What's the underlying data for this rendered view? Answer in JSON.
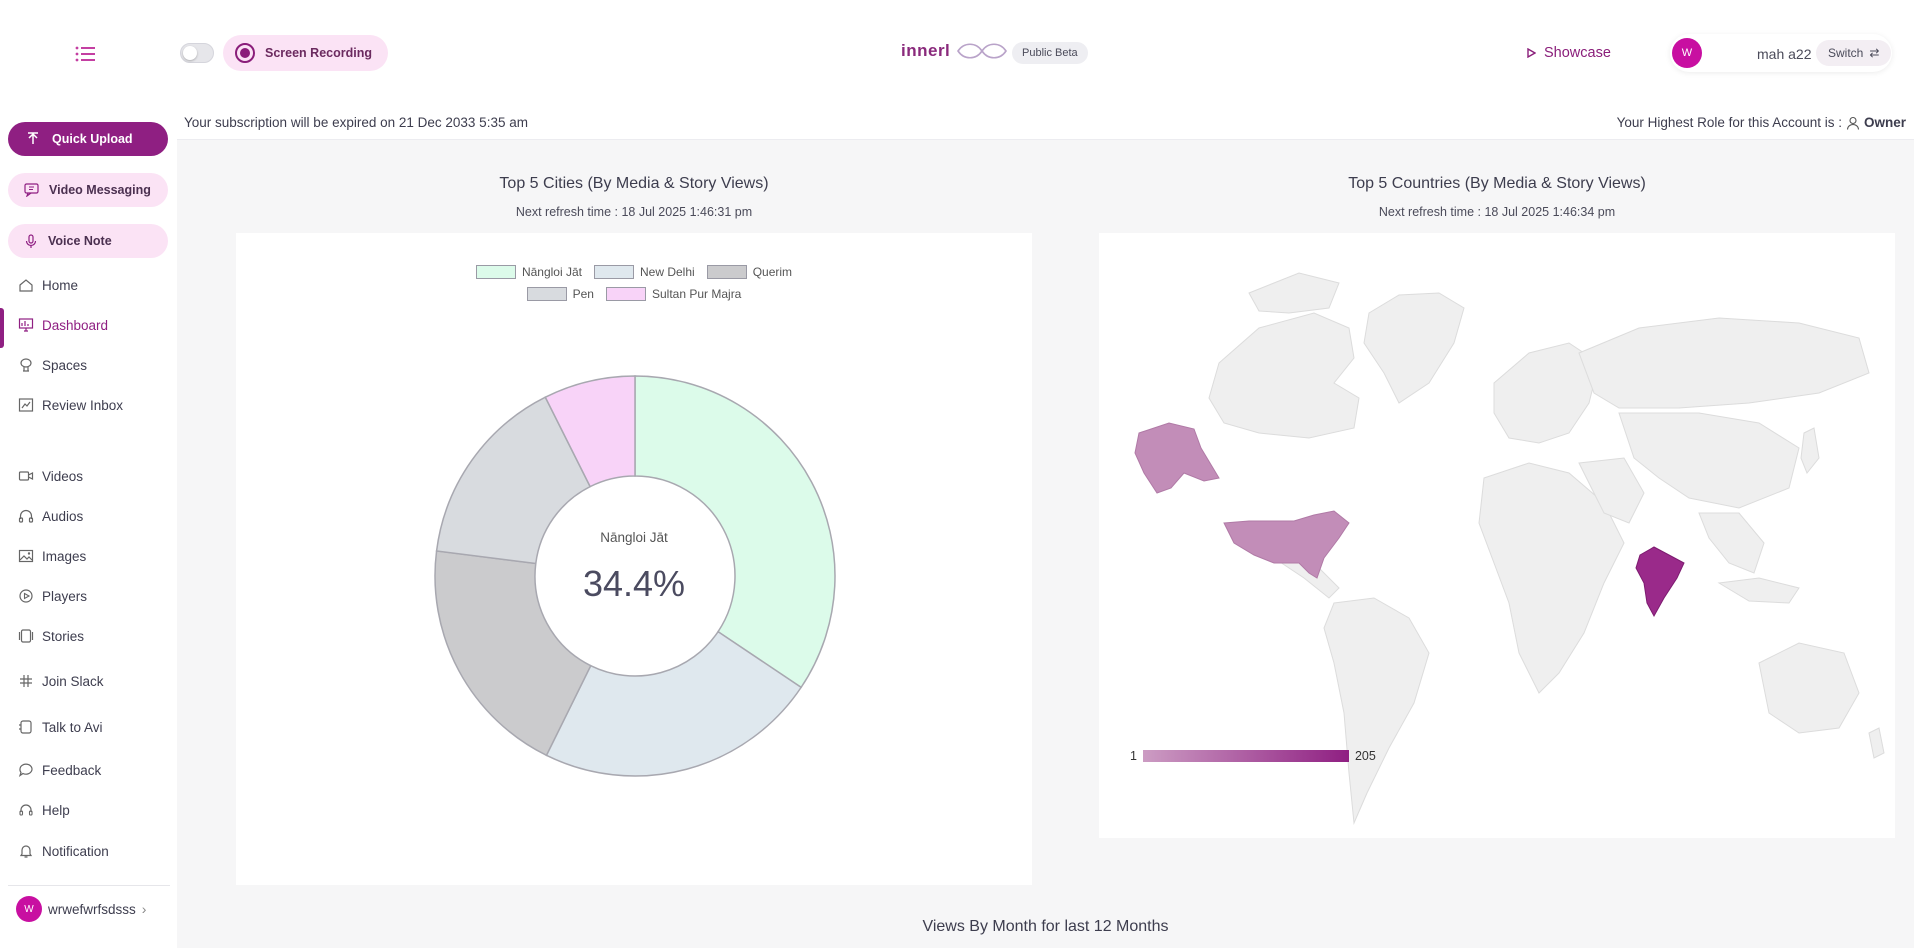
{
  "header": {
    "recording_label": "Screen Recording",
    "logo_text_left": "innerl",
    "logo_text_right": "p",
    "beta_label": "Public Beta",
    "showcase_label": "Showcase",
    "user_initial": "W",
    "user_name": "mah a22",
    "switch_label": "Switch"
  },
  "sidebar": {
    "quick_upload": "Quick Upload",
    "video_messaging": "Video Messaging",
    "voice_note": "Voice Note",
    "items": [
      {
        "label": "Home",
        "icon": "home-icon"
      },
      {
        "label": "Dashboard",
        "icon": "dashboard-icon"
      },
      {
        "label": "Spaces",
        "icon": "spaces-icon"
      },
      {
        "label": "Review Inbox",
        "icon": "review-icon"
      },
      {
        "label": "Videos",
        "icon": "video-icon"
      },
      {
        "label": "Audios",
        "icon": "headphones-icon"
      },
      {
        "label": "Images",
        "icon": "image-icon"
      },
      {
        "label": "Players",
        "icon": "player-icon"
      },
      {
        "label": "Stories",
        "icon": "stories-icon"
      },
      {
        "label": "Join Slack",
        "icon": "slack-icon"
      },
      {
        "label": "Talk to Avi",
        "icon": "chat-icon"
      },
      {
        "label": "Feedback",
        "icon": "feedback-icon"
      },
      {
        "label": "Help",
        "icon": "help-icon"
      },
      {
        "label": "Notification",
        "icon": "bell-icon"
      }
    ],
    "account_initial": "W",
    "account_name": "wrwefwrfsdsss"
  },
  "info_bar": {
    "subscription": "Your subscription will be expired on 21 Dec 2033 5:35 am",
    "role_prefix": "Your Highest Role for this Account is :",
    "role": "Owner"
  },
  "cities_panel": {
    "title": "Top 5 Cities (By Media & Story Views)",
    "refresh": "Next refresh time : 18 Jul 2025 1:46:31 pm",
    "center_label": "Nāngloi Jāt",
    "center_value": "34.4%"
  },
  "countries_panel": {
    "title": "Top 5 Countries (By Media & Story Views)",
    "refresh": "Next refresh time : 18 Jul 2025 1:46:34 pm",
    "scale_min": "1",
    "scale_max": "205"
  },
  "bottom_title": "Views By Month for last 12 Months",
  "colors": {
    "accent": "#8f1f82",
    "accent_soft": "#fbe3f5",
    "map_low": "#cc9cc3",
    "map_high": "#8f1f82"
  },
  "chart_data": {
    "type": "pie",
    "categories": [
      "Nāngloi Jāt",
      "New Delhi",
      "Querim",
      "Pen",
      "Sultan Pur Majra"
    ],
    "values": [
      34.4,
      22.9,
      19.7,
      15.6,
      7.4
    ],
    "colors": [
      "#dcfbea",
      "#dfe8ee",
      "#cbcbcd",
      "#d8dbdf",
      "#f8d3f8"
    ],
    "legend": "top"
  }
}
